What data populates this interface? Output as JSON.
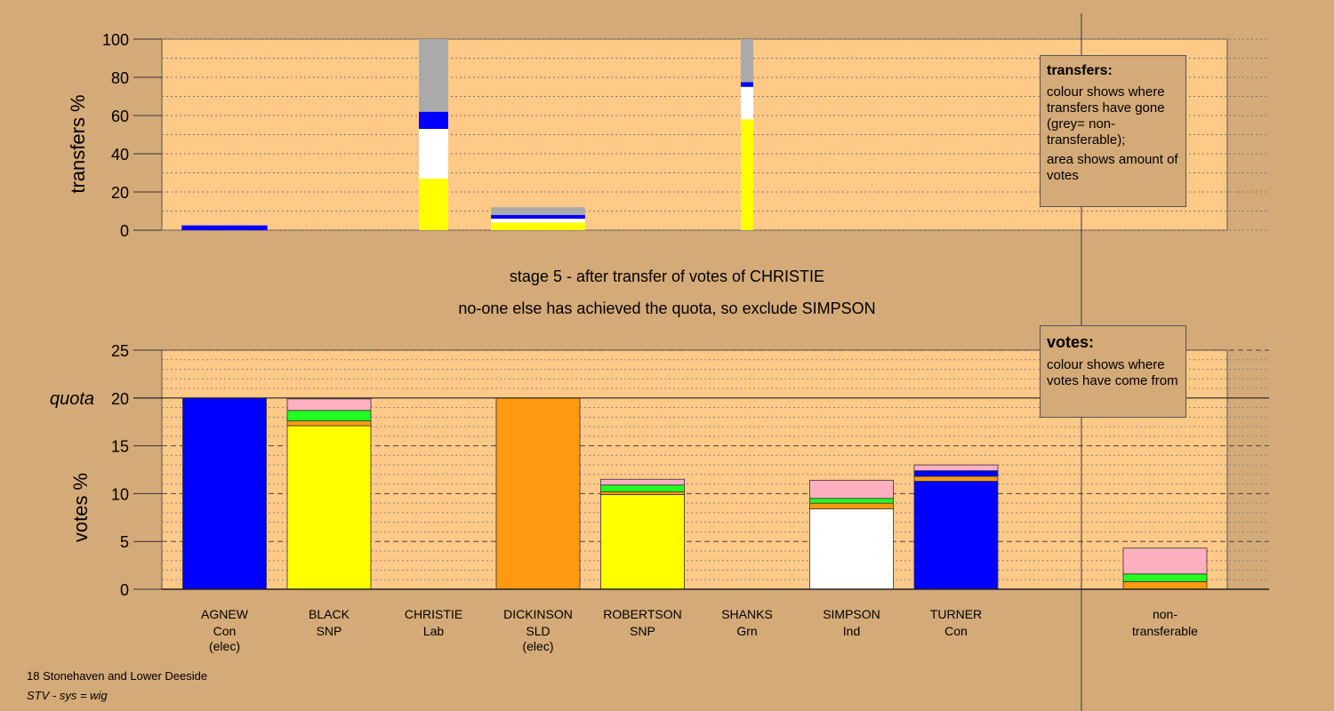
{
  "chart_data": [
    {
      "type": "bar",
      "stacked": true,
      "ylabel": "transfers %",
      "ylim": [
        0,
        100
      ],
      "yticks": [
        "0",
        "20",
        "40",
        "60",
        "80",
        "100"
      ],
      "grid": "dotted",
      "categories": [
        "AGNEW",
        "BLACK",
        "CHRISTIE",
        "DICKINSON",
        "ROBERTSON",
        "SHANKS",
        "SIMPSON",
        "TURNER"
      ],
      "stacks": [
        {
          "category": "AGNEW",
          "width": 0.82,
          "segments": [
            {
              "color": "#0000ff",
              "value": 2.5
            }
          ]
        },
        {
          "category": "BLACK",
          "width": 0,
          "segments": []
        },
        {
          "category": "CHRISTIE",
          "width": 0.28,
          "segments": [
            {
              "color": "#ffff00",
              "value": 27
            },
            {
              "color": "#ffffff",
              "value": 26
            },
            {
              "color": "#0000ff",
              "value": 9
            },
            {
              "color": "#aaaaaa",
              "value": 38
            }
          ]
        },
        {
          "category": "DICKINSON",
          "width": 0.9,
          "segments": [
            {
              "color": "#ffff00",
              "value": 4
            },
            {
              "color": "#ffffff",
              "value": 2
            },
            {
              "color": "#0000ff",
              "value": 2
            },
            {
              "color": "#aaaaaa",
              "value": 4
            }
          ]
        },
        {
          "category": "ROBERTSON",
          "width": 0,
          "segments": []
        },
        {
          "category": "SHANKS",
          "width": 0.12,
          "segments": [
            {
              "color": "#ffff00",
              "value": 58
            },
            {
              "color": "#ffffff",
              "value": 17
            },
            {
              "color": "#0000ff",
              "value": 2.5
            },
            {
              "color": "#aaaaaa",
              "value": 22.5
            }
          ]
        },
        {
          "category": "SIMPSON",
          "width": 0,
          "segments": []
        },
        {
          "category": "TURNER",
          "width": 0,
          "segments": []
        }
      ]
    },
    {
      "type": "bar",
      "stacked": true,
      "ylabel": "votes %",
      "ylim": [
        0,
        25
      ],
      "yticks": [
        "0",
        "5",
        "10",
        "15",
        "20",
        "25"
      ],
      "quota": 20,
      "quota_label": "quota",
      "grid": "dashed",
      "categories": [
        {
          "name": "AGNEW",
          "party": "Con",
          "note": "(elec)"
        },
        {
          "name": "BLACK",
          "party": "SNP",
          "note": ""
        },
        {
          "name": "CHRISTIE",
          "party": "Lab",
          "note": ""
        },
        {
          "name": "DICKINSON",
          "party": "SLD",
          "note": "(elec)"
        },
        {
          "name": "ROBERTSON",
          "party": "SNP",
          "note": ""
        },
        {
          "name": "SHANKS",
          "party": "Grn",
          "note": ""
        },
        {
          "name": "SIMPSON",
          "party": "Ind",
          "note": ""
        },
        {
          "name": "TURNER",
          "party": "Con",
          "note": ""
        }
      ],
      "nontransferable_label": [
        "non-",
        "transferable"
      ],
      "stacks": [
        {
          "category": "AGNEW",
          "segments": [
            {
              "color": "#0000ff",
              "value": 20
            }
          ]
        },
        {
          "category": "BLACK",
          "segments": [
            {
              "color": "#ffff00",
              "value": 17.1
            },
            {
              "color": "#ff9a10",
              "value": 0.5
            },
            {
              "color": "#22ff22",
              "value": 1.1
            },
            {
              "color": "#ffb0c0",
              "value": 1.2
            }
          ]
        },
        {
          "category": "CHRISTIE",
          "segments": []
        },
        {
          "category": "DICKINSON",
          "segments": [
            {
              "color": "#ff9a10",
              "value": 20
            }
          ]
        },
        {
          "category": "ROBERTSON",
          "segments": [
            {
              "color": "#ffff00",
              "value": 9.9
            },
            {
              "color": "#ff9a10",
              "value": 0.3
            },
            {
              "color": "#22ff22",
              "value": 0.7
            },
            {
              "color": "#ffb0c0",
              "value": 0.6
            }
          ]
        },
        {
          "category": "SHANKS",
          "segments": []
        },
        {
          "category": "SIMPSON",
          "segments": [
            {
              "color": "#ffffff",
              "value": 8.4
            },
            {
              "color": "#ff9a10",
              "value": 0.6
            },
            {
              "color": "#22ff22",
              "value": 0.5
            },
            {
              "color": "#ffb0c0",
              "value": 1.9
            }
          ]
        },
        {
          "category": "TURNER",
          "segments": [
            {
              "color": "#0000ff",
              "value": 11.3
            },
            {
              "color": "#ff9a10",
              "value": 0.5
            },
            {
              "color": "#0000ff",
              "value": 0.6
            },
            {
              "color": "#ffb0c0",
              "value": 0.6
            }
          ]
        },
        {
          "category": "non-transferable",
          "segments": [
            {
              "color": "#ff9a10",
              "value": 0.8
            },
            {
              "color": "#22ff22",
              "value": 0.8
            },
            {
              "color": "#ffb0c0",
              "value": 2.7
            }
          ]
        }
      ]
    }
  ],
  "legend_transfers": {
    "title": "transfers:",
    "line1": "colour shows where transfers have gone (grey= non-transferable);",
    "line2": "area shows amount of votes"
  },
  "legend_votes": {
    "title": "votes:",
    "line1": "colour shows where votes have come from"
  },
  "caption": {
    "line1": "stage 5 - after transfer of votes of CHRISTIE",
    "line2": "no-one else has achieved the quota, so exclude SIMPSON"
  },
  "footer": {
    "constituency": "18 Stonehaven and Lower Deeside",
    "system": "STV - sys = wig"
  },
  "colors": {
    "background": "#d4aa78",
    "plot_area": "#ffc988",
    "Con": "#0000ff",
    "SNP": "#ffff00",
    "SLD": "#ff9a10",
    "Ind": "#ffffff",
    "Grn": "#22ff22",
    "Lab": "#ffb0c0",
    "nontransferable": "#aaaaaa"
  }
}
